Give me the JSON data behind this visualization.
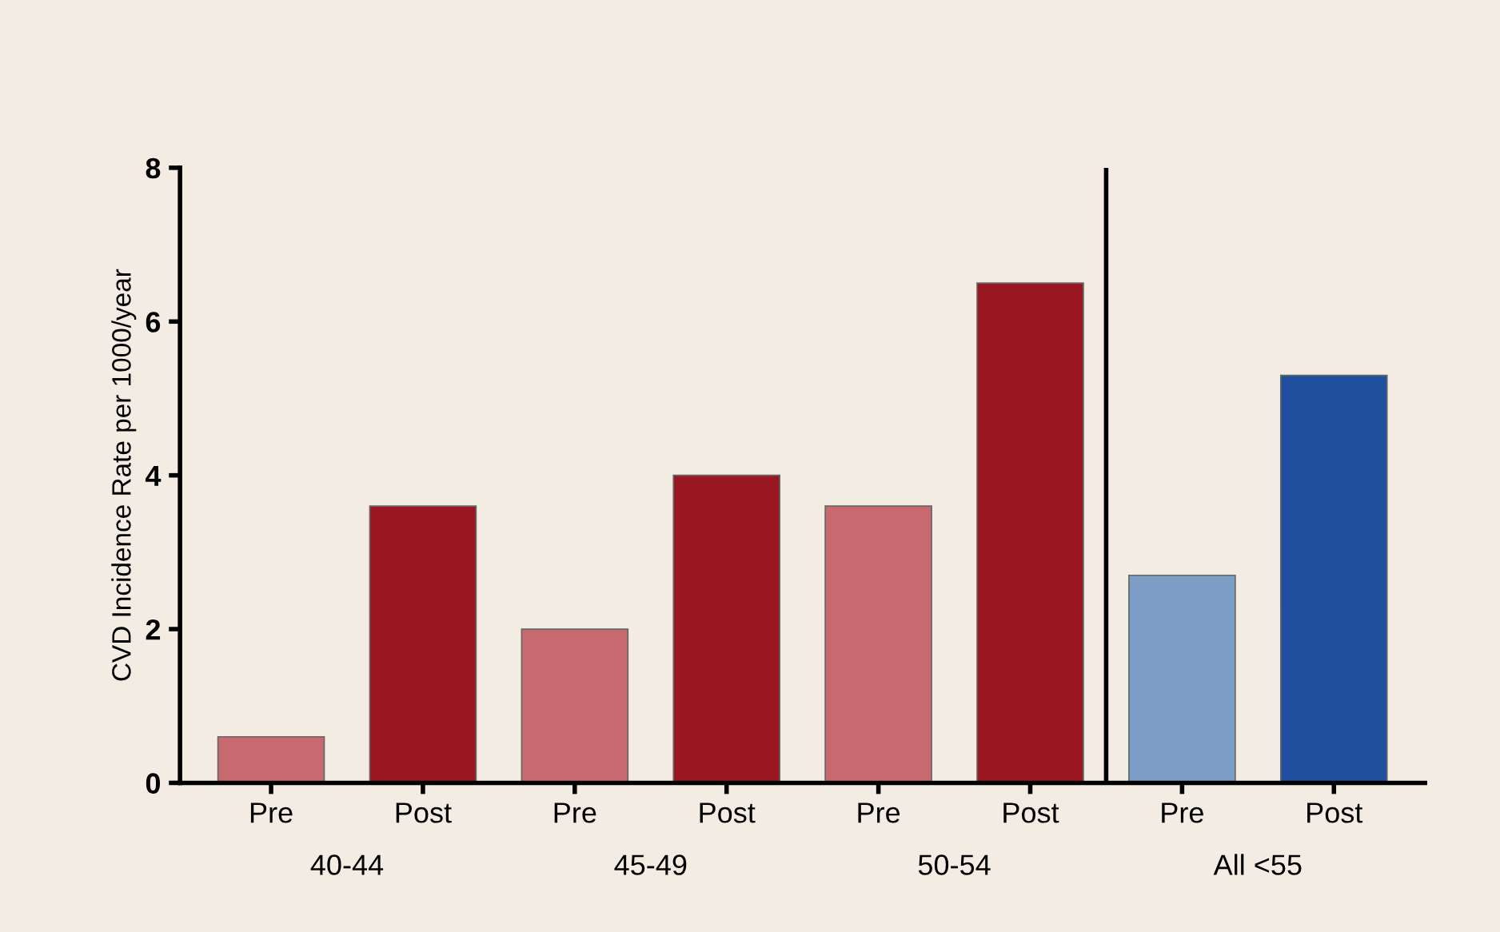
{
  "chart_data": {
    "type": "bar",
    "ylabel": "CVD Incidence Rate per 1000/year",
    "categories": [
      "Pre",
      "Post",
      "Pre",
      "Post",
      "Pre",
      "Post",
      "Pre",
      "Post"
    ],
    "values": [
      0.6,
      3.6,
      2.0,
      4.0,
      3.6,
      6.5,
      2.7,
      5.3
    ],
    "colors": [
      "#c8696f",
      "#9a1620",
      "#c8696f",
      "#9a1620",
      "#c8696f",
      "#9a1620",
      "#7b9dc6",
      "#1f4f9e"
    ],
    "annotations": [
      "40-44",
      "45-49",
      "50-54",
      "All <55"
    ],
    "ylim": [
      0,
      8
    ],
    "yticks": [
      0,
      2,
      4,
      6,
      8
    ],
    "grid": false,
    "legend": false
  }
}
